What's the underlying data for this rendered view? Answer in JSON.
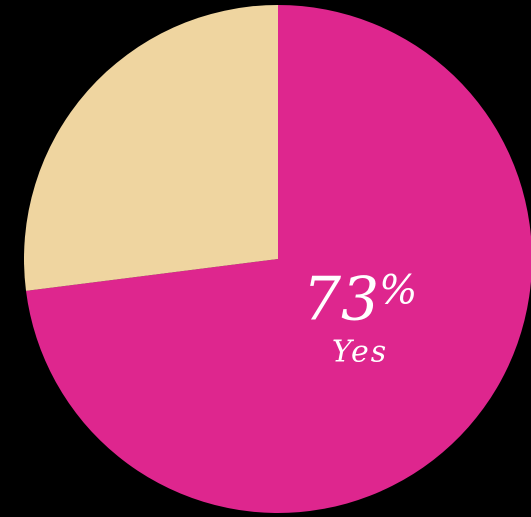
{
  "chart_data": {
    "type": "pie",
    "title": "",
    "start_at": "12 o'clock",
    "direction": "clockwise",
    "slices": [
      {
        "label": "Yes",
        "value": 73,
        "value_text": "73",
        "value_suffix": "%",
        "color": "#DE268E",
        "show_label": true
      },
      {
        "label": "",
        "value": 27,
        "value_text": "",
        "value_suffix": "",
        "color": "#EFD5A0",
        "show_label": false
      }
    ],
    "background": "#000000"
  }
}
